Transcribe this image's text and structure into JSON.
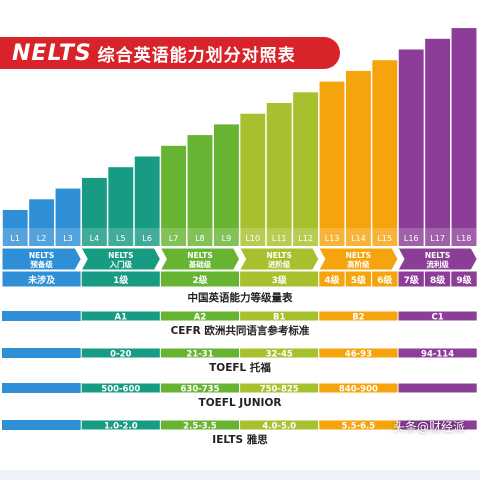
{
  "header": {
    "brand": "NELTS",
    "title": "综合英语能力划分对照表"
  },
  "chart_data": {
    "type": "bar",
    "title": "NELTS 综合英语能力划分对照表",
    "categories": [
      "L1",
      "L2",
      "L3",
      "L4",
      "L5",
      "L6",
      "L7",
      "L8",
      "L9",
      "L10",
      "L11",
      "L12",
      "L13",
      "L14",
      "L15",
      "L16",
      "L17",
      "L18"
    ],
    "values": [
      1,
      2,
      3,
      4,
      5,
      6,
      7,
      8,
      9,
      10,
      11,
      12,
      13,
      14,
      15,
      16,
      17,
      18
    ],
    "colors": {
      "blue": "#2f8fd6",
      "teal": "#179b82",
      "green": "#66b432",
      "lime": "#a6c12d",
      "orange": "#f5a40d",
      "purple": "#8b3d97",
      "white_band": "#ffffff"
    },
    "band_colors": [
      "blue",
      "blue",
      "blue",
      "teal",
      "teal",
      "teal",
      "green",
      "green",
      "green",
      "lime",
      "lime",
      "lime",
      "orange",
      "orange",
      "orange",
      "purple",
      "purple",
      "purple"
    ],
    "nelts_groups": [
      {
        "name": "NELTS",
        "label": "预备级",
        "color": "blue"
      },
      {
        "name": "NELTS",
        "label": "入门级",
        "color": "teal"
      },
      {
        "name": "NELTS",
        "label": "基础级",
        "color": "green"
      },
      {
        "name": "NELTS",
        "label": "进阶级",
        "color": "lime"
      },
      {
        "name": "NELTS",
        "label": "高阶级",
        "color": "orange"
      },
      {
        "name": "NELTS",
        "label": "流利级",
        "color": "purple"
      }
    ],
    "china_standard": {
      "title": "中国英语能力等级量表",
      "cells": [
        {
          "label": "未涉及",
          "from": 0,
          "to": 3
        },
        {
          "label": "1级",
          "from": 3,
          "to": 6
        },
        {
          "label": "2级",
          "from": 6,
          "to": 9
        },
        {
          "label": "3级",
          "from": 9,
          "to": 12
        },
        {
          "label": "4级",
          "from": 12,
          "to": 13
        },
        {
          "label": "5级",
          "from": 13,
          "to": 14
        },
        {
          "label": "6级",
          "from": 14,
          "to": 15
        },
        {
          "label": "7级",
          "from": 15,
          "to": 16
        },
        {
          "label": "8级",
          "from": 16,
          "to": 17
        },
        {
          "label": "9级",
          "from": 17,
          "to": 18
        }
      ]
    },
    "exam_rows": [
      {
        "title": "CEFR 欧洲共同语言参考标准",
        "cells": [
          {
            "label": "A1",
            "from": 3,
            "to": 6
          },
          {
            "label": "A2",
            "from": 6,
            "to": 9
          },
          {
            "label": "B1",
            "from": 9,
            "to": 12
          },
          {
            "label": "B2",
            "from": 12,
            "to": 15
          },
          {
            "label": "C1",
            "from": 15,
            "to": 18
          }
        ]
      },
      {
        "title": "TOEFL 托福",
        "cells": [
          {
            "label": "0-20",
            "from": 3,
            "to": 6
          },
          {
            "label": "21-31",
            "from": 6,
            "to": 9
          },
          {
            "label": "32-45",
            "from": 9,
            "to": 12
          },
          {
            "label": "46-93",
            "from": 12,
            "to": 15
          },
          {
            "label": "94-114",
            "from": 15,
            "to": 18
          }
        ]
      },
      {
        "title": "TOEFL JUNIOR",
        "cells": [
          {
            "label": "500-600",
            "from": 3,
            "to": 6
          },
          {
            "label": "630-735",
            "from": 6,
            "to": 9
          },
          {
            "label": "750-825",
            "from": 9,
            "to": 12
          },
          {
            "label": "840-900",
            "from": 12,
            "to": 15
          },
          {
            "label": "",
            "from": 15,
            "to": 18
          }
        ]
      },
      {
        "title": "IELTS 雅思",
        "cells": [
          {
            "label": "1.0-2.0",
            "from": 3,
            "to": 6
          },
          {
            "label": "2.5-3.5",
            "from": 6,
            "to": 9
          },
          {
            "label": "4.0-5.0",
            "from": 9,
            "to": 12
          },
          {
            "label": "5.5-6.5",
            "from": 12,
            "to": 15
          },
          {
            "label": "",
            "from": 15,
            "to": 18
          }
        ]
      }
    ]
  },
  "watermark": "头条@财经派"
}
